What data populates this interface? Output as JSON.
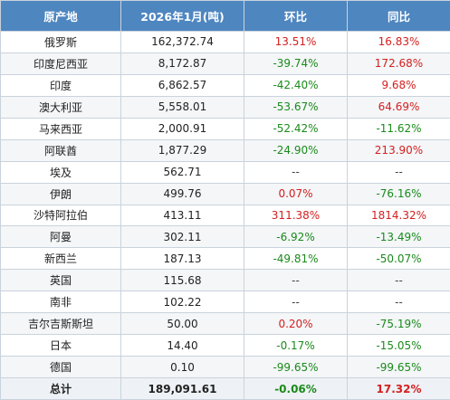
{
  "table": {
    "headers": [
      "原产地",
      "2026年1月(吨)",
      "环比",
      "同比"
    ],
    "rows": [
      {
        "origin": "俄罗斯",
        "value": "162,372.74",
        "mom": "13.51%",
        "yoy": "16.83%"
      },
      {
        "origin": "印度尼西亚",
        "value": "8,172.87",
        "mom": "-39.74%",
        "yoy": "172.68%"
      },
      {
        "origin": "印度",
        "value": "6,862.57",
        "mom": "-42.40%",
        "yoy": "9.68%"
      },
      {
        "origin": "澳大利亚",
        "value": "5,558.01",
        "mom": "-53.67%",
        "yoy": "64.69%"
      },
      {
        "origin": "马来西亚",
        "value": "2,000.91",
        "mom": "-52.42%",
        "yoy": "-11.62%"
      },
      {
        "origin": "阿联酋",
        "value": "1,877.29",
        "mom": "-24.90%",
        "yoy": "213.90%"
      },
      {
        "origin": "埃及",
        "value": "562.71",
        "mom": "--",
        "yoy": "--"
      },
      {
        "origin": "伊朗",
        "value": "499.76",
        "mom": "0.07%",
        "yoy": "-76.16%"
      },
      {
        "origin": "沙特阿拉伯",
        "value": "413.11",
        "mom": "311.38%",
        "yoy": "1814.32%"
      },
      {
        "origin": "阿曼",
        "value": "302.11",
        "mom": "-6.92%",
        "yoy": "-13.49%"
      },
      {
        "origin": "新西兰",
        "value": "187.13",
        "mom": "-49.81%",
        "yoy": "-50.07%"
      },
      {
        "origin": "英国",
        "value": "115.68",
        "mom": "--",
        "yoy": "--"
      },
      {
        "origin": "南非",
        "value": "102.22",
        "mom": "--",
        "yoy": "--"
      },
      {
        "origin": "吉尔吉斯斯坦",
        "value": "50.00",
        "mom": "0.20%",
        "yoy": "-75.19%"
      },
      {
        "origin": "日本",
        "value": "14.40",
        "mom": "-0.17%",
        "yoy": "-15.05%"
      },
      {
        "origin": "德国",
        "value": "0.10",
        "mom": "-99.65%",
        "yoy": "-99.65%"
      }
    ],
    "total": {
      "origin": "总计",
      "value": "189,091.61",
      "mom": "-0.06%",
      "yoy": "17.32%"
    }
  },
  "colors": {
    "header_bg": "#4e86c0",
    "negative": "#1a8a1a",
    "positive": "#d42020",
    "border": "#c9d3dc"
  }
}
